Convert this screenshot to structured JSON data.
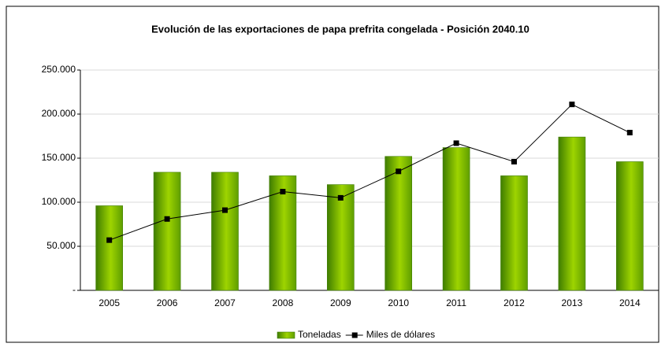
{
  "chart_data": {
    "type": "bar_line",
    "title": "Evolución de las exportaciones de papa prefrita congelada - Posición 2040.10",
    "categories": [
      "2005",
      "2006",
      "2007",
      "2008",
      "2009",
      "2010",
      "2011",
      "2012",
      "2013",
      "2014"
    ],
    "series": [
      {
        "name": "Toneladas",
        "type": "bar",
        "color": "#6aaa00",
        "values": [
          96000,
          134000,
          134000,
          130000,
          120000,
          152000,
          162000,
          130000,
          174000,
          146000
        ]
      },
      {
        "name": "Miles de dólares",
        "type": "line",
        "color": "#000000",
        "values": [
          57000,
          81000,
          91000,
          112000,
          105000,
          135000,
          167000,
          146000,
          211000,
          179000
        ]
      }
    ],
    "ylim": [
      0,
      250000
    ],
    "yticks": [
      {
        "value": 0,
        "label": "-"
      },
      {
        "value": 50000,
        "label": "50.000"
      },
      {
        "value": 100000,
        "label": "100.000"
      },
      {
        "value": 150000,
        "label": "150.000"
      },
      {
        "value": 200000,
        "label": "200.000"
      },
      {
        "value": 250000,
        "label": "250.000"
      }
    ],
    "grid": true,
    "legend": "bottom"
  }
}
